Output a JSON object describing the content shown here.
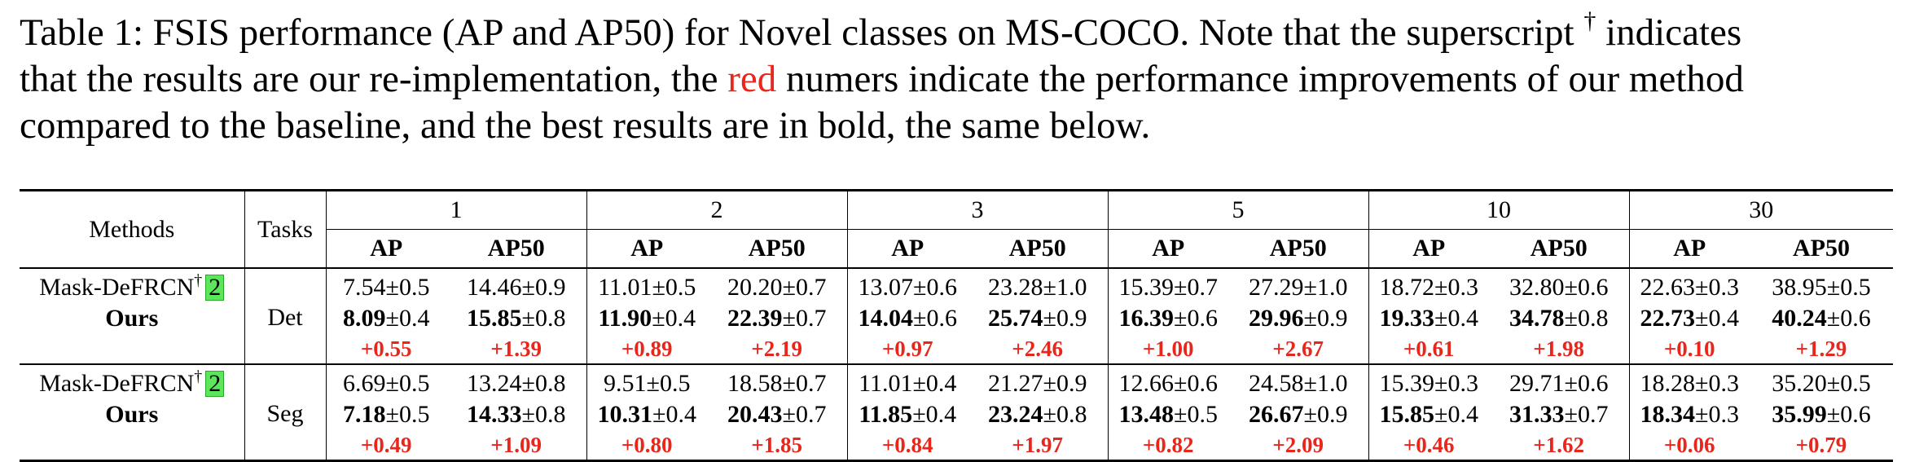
{
  "caption": {
    "line1": "Table 1: FSIS performance (AP and AP50) for Novel classes on MS-COCO. Note that the superscript",
    "dagger": "†",
    "line1_end": " indicates",
    "line2_pre": "that the results are our re-implementation, the ",
    "red_word": "red",
    "line2_post": " numers indicate the performance improvements of our method",
    "line3": "compared to the baseline, and the best results are in bold, the same below.",
    "red_color": "#e8261c"
  },
  "table": {
    "col_methods": "Methods",
    "col_tasks": "Tasks",
    "shots": [
      "1",
      "2",
      "3",
      "5",
      "10",
      "30"
    ],
    "metrics": [
      "AP",
      "AP50"
    ],
    "baseline_name": "Mask-DeFRCN",
    "baseline_mark": "†",
    "baseline_cite": "2",
    "ours_name": "Ours",
    "blocks": [
      {
        "task": "Det",
        "baseline": [
          "7.54±0.5",
          "14.46±0.9",
          "11.01±0.5",
          "20.20±0.7",
          "13.07±0.6",
          "23.28±1.0",
          "15.39±0.7",
          "27.29±1.0",
          "18.72±0.3",
          "32.80±0.6",
          "22.63±0.3",
          "38.95±0.5"
        ],
        "ours_main": [
          "8.09",
          "15.85",
          "11.90",
          "22.39",
          "14.04",
          "25.74",
          "16.39",
          "29.96",
          "19.33",
          "34.78",
          "22.73",
          "40.24"
        ],
        "ours_std": [
          "±0.4",
          "±0.8",
          "±0.4",
          "±0.7",
          "±0.6",
          "±0.9",
          "±0.6",
          "±0.9",
          "±0.4",
          "±0.8",
          "±0.4",
          "±0.6"
        ],
        "gain": [
          "+0.55",
          "+1.39",
          "+0.89",
          "+2.19",
          "+0.97",
          "+2.46",
          "+1.00",
          "+2.67",
          "+0.61",
          "+1.98",
          "+0.10",
          "+1.29"
        ]
      },
      {
        "task": "Seg",
        "baseline": [
          "6.69±0.5",
          "13.24±0.8",
          "9.51±0.5",
          "18.58±0.7",
          "11.01±0.4",
          "21.27±0.9",
          "12.66±0.6",
          "24.58±1.0",
          "15.39±0.3",
          "29.71±0.6",
          "18.28±0.3",
          "35.20±0.5"
        ],
        "ours_main": [
          "7.18",
          "14.33",
          "10.31",
          "20.43",
          "11.85",
          "23.24",
          "13.48",
          "26.67",
          "15.85",
          "31.33",
          "18.34",
          "35.99"
        ],
        "ours_std": [
          "±0.5",
          "±0.8",
          "±0.4",
          "±0.7",
          "±0.4",
          "±0.8",
          "±0.5",
          "±0.9",
          "±0.4",
          "±0.7",
          "±0.3",
          "±0.6"
        ],
        "gain": [
          "+0.49",
          "+1.09",
          "+0.80",
          "+1.85",
          "+0.84",
          "+1.97",
          "+0.82",
          "+2.09",
          "+0.46",
          "+1.62",
          "+0.06",
          "+0.79"
        ]
      }
    ]
  }
}
